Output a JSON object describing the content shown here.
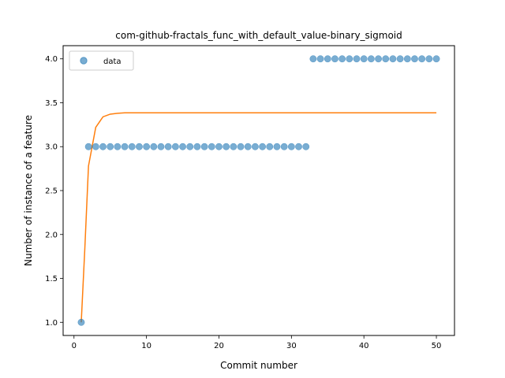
{
  "chart_data": {
    "type": "scatter",
    "title": "com-github-fractals_func_with_default_value-binary_sigmoid",
    "xlabel": "Commit number",
    "ylabel": "Number of instance of a feature",
    "xlim": [
      -1.5,
      52.5
    ],
    "ylim": [
      0.85,
      4.15
    ],
    "xticks": [
      0,
      10,
      20,
      30,
      40,
      50
    ],
    "xtick_labels": [
      "0",
      "10",
      "20",
      "30",
      "40",
      "50"
    ],
    "yticks": [
      1.0,
      1.5,
      2.0,
      2.5,
      3.0,
      3.5,
      4.0
    ],
    "ytick_labels": [
      "1.0",
      "1.5",
      "2.0",
      "2.5",
      "3.0",
      "3.5",
      "4.0"
    ],
    "grid": false,
    "legend_position": "top-left",
    "series": [
      {
        "name": "data",
        "kind": "scatter",
        "color": "#1f77b4",
        "x": [
          1,
          2,
          3,
          4,
          5,
          6,
          7,
          8,
          9,
          10,
          11,
          12,
          13,
          14,
          15,
          16,
          17,
          18,
          19,
          20,
          21,
          22,
          23,
          24,
          25,
          26,
          27,
          28,
          29,
          30,
          31,
          32,
          33,
          34,
          35,
          36,
          37,
          38,
          39,
          40,
          41,
          42,
          43,
          44,
          45,
          46,
          47,
          48,
          49,
          50
        ],
        "y": [
          1,
          3,
          3,
          3,
          3,
          3,
          3,
          3,
          3,
          3,
          3,
          3,
          3,
          3,
          3,
          3,
          3,
          3,
          3,
          3,
          3,
          3,
          3,
          3,
          3,
          3,
          3,
          3,
          3,
          3,
          3,
          3,
          4,
          4,
          4,
          4,
          4,
          4,
          4,
          4,
          4,
          4,
          4,
          4,
          4,
          4,
          4,
          4,
          4,
          4
        ]
      },
      {
        "kind": "line",
        "color": "#ff7f0e",
        "x": [
          1,
          1.5,
          2,
          3,
          4,
          5,
          6,
          7,
          8,
          10,
          15,
          20,
          30,
          40,
          50
        ],
        "y": [
          1.0,
          1.85,
          2.78,
          3.22,
          3.34,
          3.37,
          3.38,
          3.385,
          3.385,
          3.385,
          3.385,
          3.385,
          3.385,
          3.385,
          3.385
        ]
      }
    ]
  }
}
